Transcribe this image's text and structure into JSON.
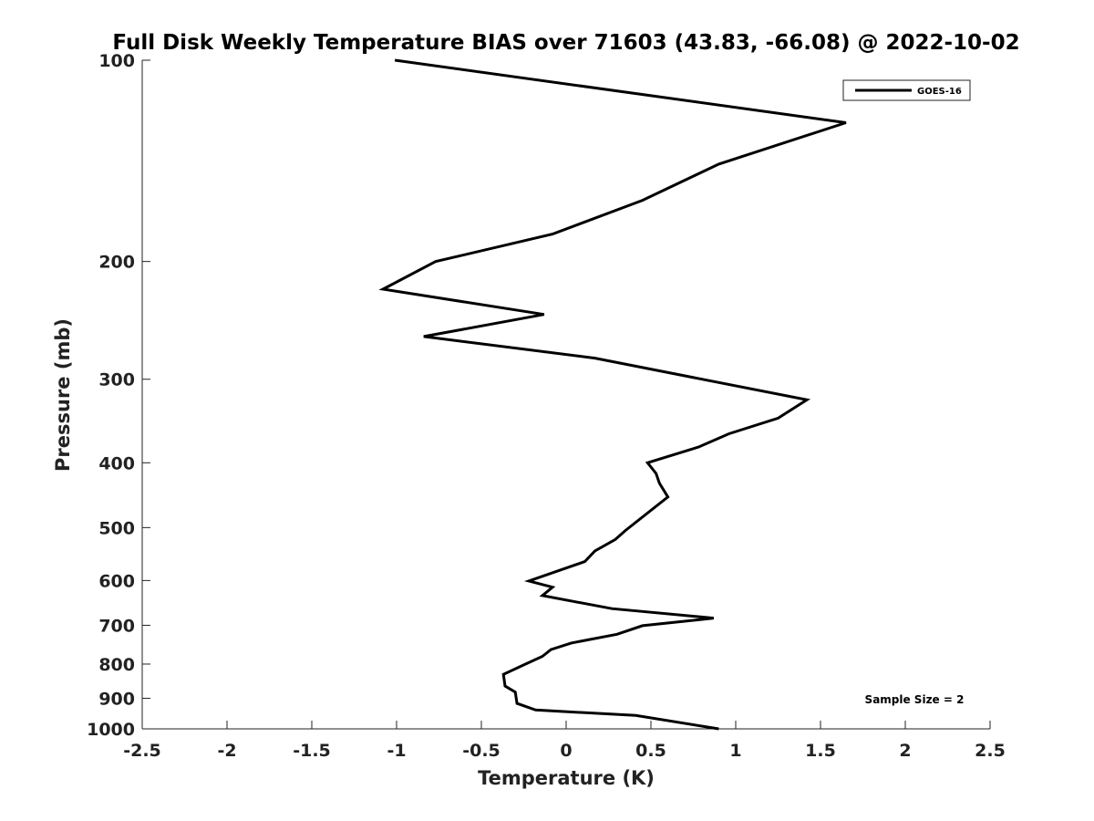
{
  "chart_data": {
    "type": "line",
    "title": "Full Disk Weekly Temperature BIAS over 71603 (43.83, -66.08) @ 2022-10-02",
    "xlabel": "Temperature (K)",
    "ylabel": "Pressure (mb)",
    "xlim": [
      -2.5,
      2.5
    ],
    "ylim": [
      100,
      1000
    ],
    "y_scale": "log",
    "y_reversed": true,
    "grid": false,
    "legend_position": "top-right",
    "x_ticks": [
      "-2.5",
      "-2",
      "-1.5",
      "-1",
      "-0.5",
      "0",
      "0.5",
      "1",
      "1.5",
      "2",
      "2.5"
    ],
    "x_tick_values": [
      -2.5,
      -2,
      -1.5,
      -1,
      -0.5,
      0,
      0.5,
      1,
      1.5,
      2,
      2.5
    ],
    "y_ticks": [
      "100",
      "200",
      "300",
      "400",
      "500",
      "600",
      "700",
      "800",
      "900",
      "1000"
    ],
    "y_tick_values": [
      100,
      200,
      300,
      400,
      500,
      600,
      700,
      800,
      900,
      1000
    ],
    "series": [
      {
        "name": "GOES-16",
        "color": "#000000",
        "x": [
          -1.01,
          1.65,
          0.9,
          0.45,
          -0.08,
          -0.77,
          -1.08,
          -0.13,
          -0.84,
          0.17,
          1.42,
          1.25,
          0.96,
          0.78,
          0.48,
          0.53,
          0.55,
          0.6,
          0.35,
          0.29,
          0.17,
          0.11,
          -0.22,
          -0.08,
          -0.14,
          0.27,
          0.87,
          0.45,
          0.3,
          0.03,
          -0.09,
          -0.14,
          -0.24,
          -0.37,
          -0.36,
          -0.3,
          -0.29,
          -0.18,
          0.41,
          0.9
        ],
        "y": [
          100,
          124,
          143,
          162,
          182,
          200,
          220,
          240,
          259,
          279,
          322,
          343,
          362,
          379,
          400,
          415,
          429,
          450,
          505,
          521,
          542,
          562,
          601,
          614,
          632,
          661,
          683,
          701,
          722,
          744,
          761,
          779,
          800,
          829,
          863,
          881,
          916,
          937,
          955,
          1000
        ]
      }
    ],
    "annotations": [
      {
        "text": "Sample Size = 2",
        "x": 1.85,
        "y": 910
      }
    ]
  }
}
